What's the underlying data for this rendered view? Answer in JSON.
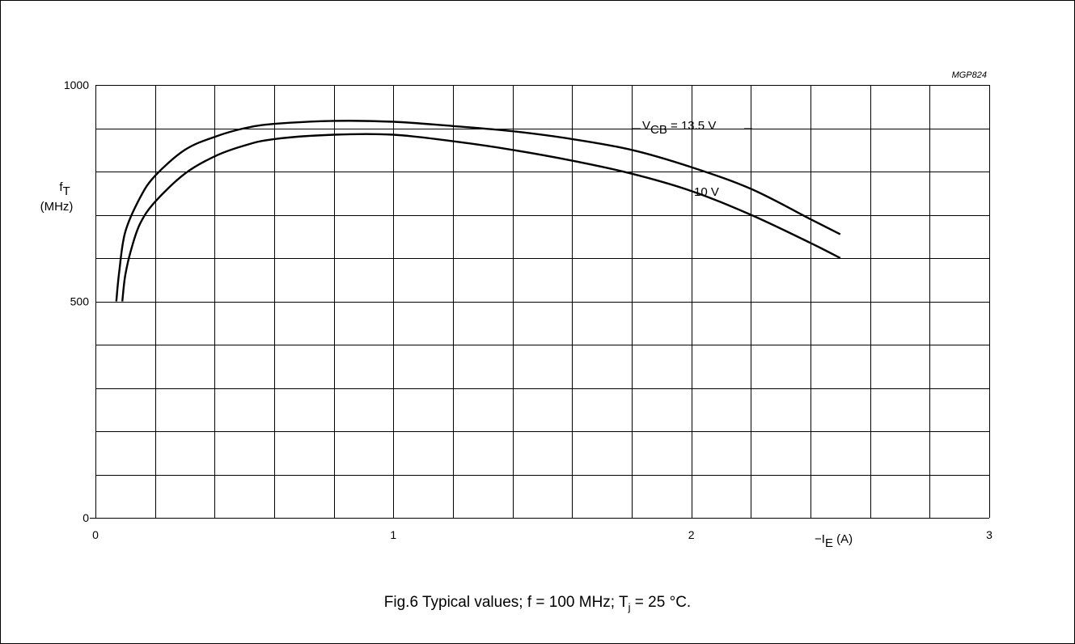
{
  "figure": {
    "code": "MGP824",
    "caption": {
      "prefix": "Fig.6  Typical values; f = 100 MHz; T",
      "sub": "j",
      "suffix": " = 25 °C."
    }
  },
  "chart_data": {
    "type": "line",
    "ylabel": {
      "main": "f",
      "sub": "T",
      "unit": "(MHz)"
    },
    "xlabel": {
      "main": "−I",
      "sub": "E",
      "unit": " (A)"
    },
    "xlim": [
      0,
      3
    ],
    "ylim": [
      0,
      1000
    ],
    "x_ticks": [
      0,
      1,
      2,
      3
    ],
    "x_tick_labels": [
      "0",
      "1",
      "2",
      "3"
    ],
    "y_ticks": [
      0,
      500,
      1000
    ],
    "y_tick_labels": [
      "0",
      "500",
      "1000"
    ],
    "x_grid_step": 0.2,
    "y_grid_step": 100,
    "grid": true,
    "series": [
      {
        "label": {
          "main": "V",
          "sub": "CB",
          "rest": " = 13.5 V"
        },
        "x": [
          0.07,
          0.08,
          0.1,
          0.15,
          0.2,
          0.3,
          0.4,
          0.5,
          0.6,
          0.8,
          1.0,
          1.2,
          1.4,
          1.6,
          1.8,
          2.0,
          2.2,
          2.4,
          2.5
        ],
        "y": [
          500,
          570,
          660,
          740,
          790,
          850,
          880,
          900,
          910,
          917,
          915,
          905,
          893,
          875,
          850,
          810,
          760,
          690,
          655
        ]
      },
      {
        "label": {
          "main": "10 V",
          "sub": "",
          "rest": ""
        },
        "x": [
          0.09,
          0.1,
          0.12,
          0.15,
          0.2,
          0.3,
          0.4,
          0.5,
          0.6,
          0.8,
          1.0,
          1.2,
          1.4,
          1.6,
          1.8,
          2.0,
          2.2,
          2.4,
          2.5
        ],
        "y": [
          500,
          560,
          620,
          680,
          730,
          795,
          835,
          860,
          875,
          885,
          885,
          870,
          850,
          825,
          795,
          755,
          700,
          635,
          600
        ]
      }
    ]
  }
}
